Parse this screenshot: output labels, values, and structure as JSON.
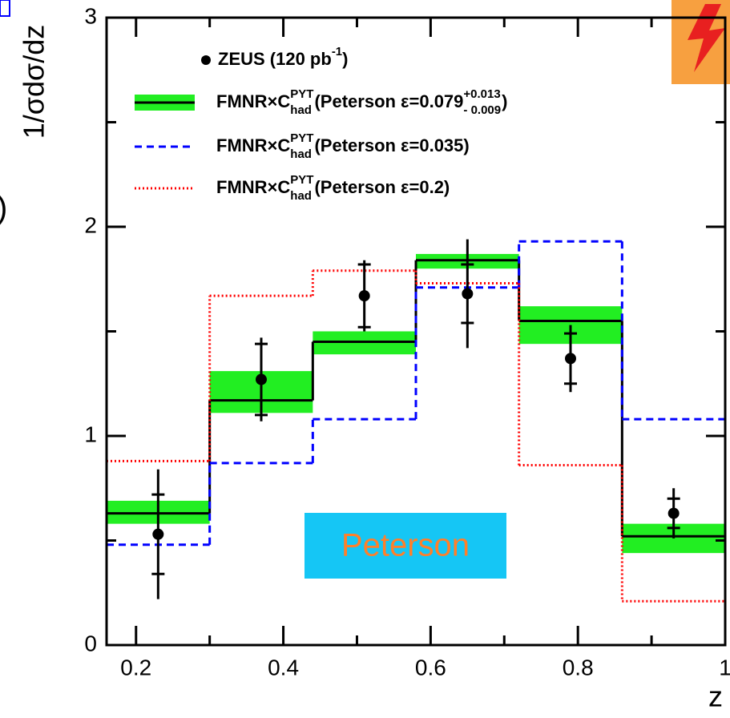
{
  "chart_data": {
    "type": "step",
    "xlabel": "z",
    "ylabel": "1/σdσ/dz",
    "side_text": ")",
    "annotation": "Peterson",
    "xlim": [
      0.16,
      1
    ],
    "ylim": [
      0,
      3
    ],
    "xticks": [
      0.2,
      0.4,
      0.6,
      0.8,
      1
    ],
    "xminorticks": [
      0.3,
      0.5,
      0.7,
      0.9
    ],
    "yticks": [
      0,
      1,
      2,
      3
    ],
    "yminorticks": [
      0.5,
      1.5,
      2.5
    ],
    "bins": [
      0.16,
      0.3,
      0.44,
      0.58,
      0.72,
      0.86,
      1
    ],
    "x": [
      0.23,
      0.37,
      0.51,
      0.65,
      0.79,
      0.93
    ],
    "series": [
      {
        "name": [
          {
            "text": "ZEUS (120 pb"
          },
          {
            "text": "-1",
            "pos": "sup"
          },
          {
            "text": ")"
          }
        ],
        "style": "points",
        "color": "#000000",
        "values": [
          0.53,
          1.27,
          1.67,
          1.68,
          1.37,
          0.63
        ],
        "errors_stat": [
          0.19,
          0.17,
          0.15,
          0.14,
          0.12,
          0.07
        ],
        "errors_total": [
          0.31,
          0.2,
          0.17,
          0.26,
          0.16,
          0.12
        ]
      },
      {
        "name": [
          {
            "text": "FMNR×C"
          },
          {
            "text": "PYT",
            "pos": "sup"
          },
          {
            "text": "had",
            "pos": "sub"
          },
          {
            "text": "(Peterson ε=0.079"
          },
          {
            "text": "+0.013",
            "pos": "sup"
          },
          {
            "text": "- 0.009",
            "pos": "sub"
          },
          {
            "text": ")"
          }
        ],
        "style": "band",
        "color": "#000000",
        "band_color": "#22ee22",
        "values": [
          0.63,
          1.17,
          1.45,
          1.84,
          1.55,
          0.52
        ],
        "low": [
          0.58,
          1.11,
          1.39,
          1.8,
          1.44,
          0.44
        ],
        "high": [
          0.69,
          1.31,
          1.5,
          1.87,
          1.62,
          0.58
        ]
      },
      {
        "name": [
          {
            "text": "FMNR×C"
          },
          {
            "text": "PYT",
            "pos": "sup"
          },
          {
            "text": "had",
            "pos": "sub"
          },
          {
            "text": "(Peterson ε=0.035)"
          }
        ],
        "style": "dashed",
        "color": "#0000ff",
        "values": [
          0.48,
          0.87,
          1.08,
          1.71,
          1.93,
          1.08
        ]
      },
      {
        "name": [
          {
            "text": "FMNR×C"
          },
          {
            "text": "PYT",
            "pos": "sup"
          },
          {
            "text": "had",
            "pos": "sub"
          },
          {
            "text": "(Peterson ε=0.2)"
          }
        ],
        "style": "dotted",
        "color": "#ff0000",
        "values": [
          0.88,
          1.67,
          1.79,
          1.73,
          0.86,
          0.21
        ]
      }
    ]
  }
}
